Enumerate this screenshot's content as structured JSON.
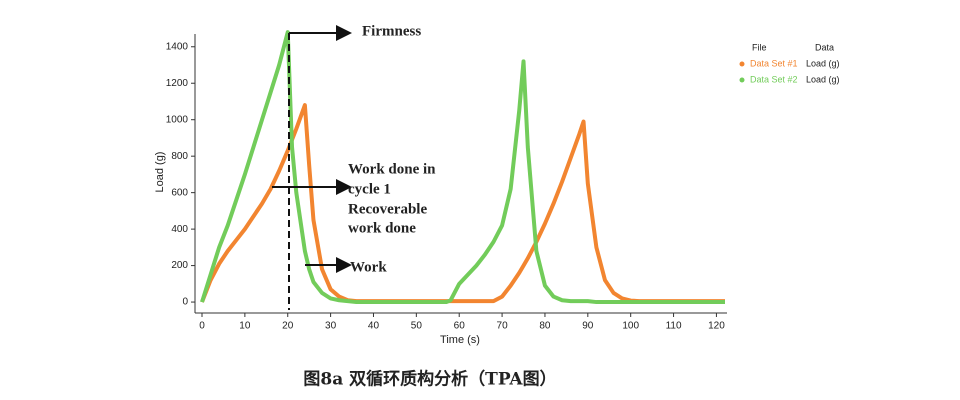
{
  "chart_data": {
    "type": "line",
    "x_label": "Time (s)",
    "y_label": "Load (g)",
    "caption": "图8a 双循环质构分析（TPA图）",
    "xlim": [
      0,
      122
    ],
    "ylim": [
      -60,
      1470
    ],
    "xticks": [
      0,
      10,
      20,
      30,
      40,
      50,
      60,
      70,
      80,
      90,
      100,
      110,
      120
    ],
    "yticks": [
      0,
      200,
      400,
      600,
      800,
      1000,
      1200,
      1400
    ],
    "legend_headers": [
      "File",
      "Data"
    ],
    "legend_position": "top-right",
    "annotations": [
      "Firmness",
      "Work done in",
      "cycle 1",
      "Recoverable",
      "work done",
      "Work"
    ],
    "x": [
      0,
      2,
      4,
      6,
      8,
      10,
      12,
      14,
      16,
      18,
      20,
      21,
      22,
      24,
      25,
      26,
      28,
      30,
      32,
      34,
      36,
      40,
      50,
      57,
      58,
      60,
      62,
      64,
      66,
      68,
      70,
      72,
      74,
      75,
      76,
      78,
      80,
      82,
      84,
      86,
      88,
      89,
      90,
      92,
      94,
      96,
      98,
      100,
      102,
      104,
      110,
      120,
      122
    ],
    "series": [
      {
        "name": "Data Set #1",
        "data_column": "Load (g)",
        "color": "#f28530",
        "values": [
          0,
          120,
          210,
          280,
          340,
          400,
          470,
          540,
          620,
          720,
          830,
          890,
          950,
          1080,
          750,
          450,
          180,
          70,
          30,
          10,
          5,
          5,
          5,
          5,
          5,
          5,
          5,
          5,
          5,
          5,
          30,
          90,
          160,
          200,
          240,
          330,
          430,
          540,
          660,
          790,
          920,
          990,
          650,
          300,
          120,
          50,
          20,
          8,
          5,
          5,
          5,
          5,
          5
        ]
      },
      {
        "name": "Data Set #2",
        "data_column": "Load (g)",
        "color": "#72cc5a",
        "values": [
          0,
          150,
          300,
          420,
          560,
          700,
          850,
          1000,
          1150,
          1300,
          1480,
          850,
          600,
          280,
          180,
          110,
          50,
          20,
          10,
          5,
          0,
          0,
          0,
          0,
          10,
          100,
          150,
          200,
          260,
          330,
          420,
          620,
          1050,
          1320,
          850,
          280,
          90,
          30,
          10,
          5,
          5,
          5,
          5,
          0,
          0,
          0,
          0,
          0,
          0,
          0,
          0,
          0,
          0
        ]
      }
    ]
  }
}
